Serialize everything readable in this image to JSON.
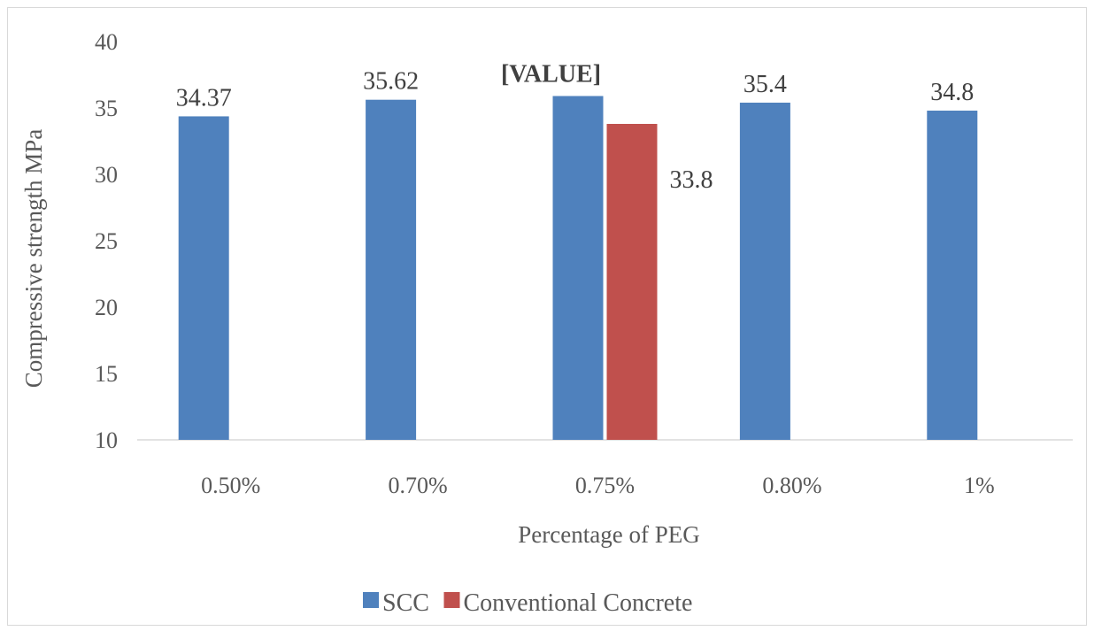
{
  "chart_data": {
    "type": "bar",
    "title": "",
    "xlabel": "Percentage of  PEG",
    "ylabel": "Compressive strength MPa",
    "categories": [
      "0.50%",
      "0.70%",
      "0.75%",
      "0.80%",
      "1%"
    ],
    "ylim": [
      10,
      40
    ],
    "yticks": [
      10,
      15,
      20,
      25,
      30,
      35,
      40
    ],
    "grid": false,
    "legend_position": "bottom",
    "series": [
      {
        "name": "SCC",
        "color": "#4f81bd",
        "values": [
          34.37,
          35.62,
          35.9,
          35.4,
          34.8
        ],
        "labels": [
          "34.37",
          "35.62",
          "[VALUE]",
          "35.4",
          "34.8"
        ]
      },
      {
        "name": "Conventional Concrete",
        "color": "#c0504d",
        "values": [
          null,
          null,
          33.8,
          null,
          null
        ],
        "labels": [
          "",
          "",
          "33.8",
          "",
          ""
        ]
      }
    ]
  }
}
